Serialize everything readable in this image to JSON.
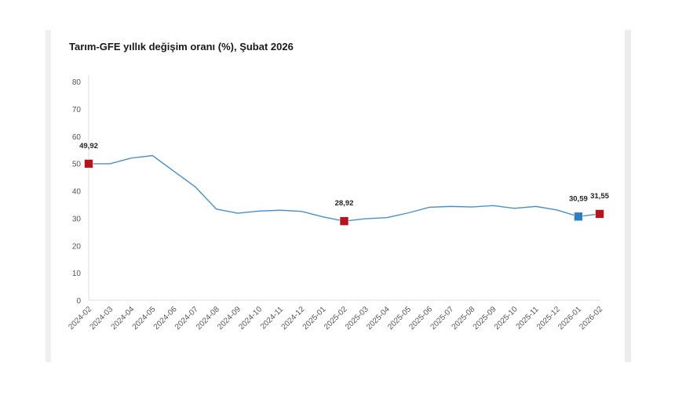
{
  "chart_data": {
    "type": "line",
    "title": "Tarım-GFE yıllık değişim oranı (%), Şubat 2026",
    "xlabel": "",
    "ylabel": "",
    "ylim": [
      0,
      80
    ],
    "yticks": [
      "0",
      "10",
      "20",
      "30",
      "40",
      "50",
      "60",
      "70",
      "80"
    ],
    "grid": false,
    "categories": [
      "2024-02",
      "2024-03",
      "2024-04",
      "2024-05",
      "2024-06",
      "2024-07",
      "2024-08",
      "2024-09",
      "2024-10",
      "2024-11",
      "2024-12",
      "2025-01",
      "2025-02",
      "2025-03",
      "2025-04",
      "2025-05",
      "2025-06",
      "2025-07",
      "2025-08",
      "2025-09",
      "2025-10",
      "2025-11",
      "2025-12",
      "2026-01",
      "2026-02"
    ],
    "series": [
      {
        "name": "Tarım-GFE",
        "color": "#4a90c8",
        "values": [
          49.92,
          49.9,
          52.0,
          52.9,
          47.2,
          41.5,
          33.3,
          31.8,
          32.6,
          32.9,
          32.5,
          30.5,
          28.92,
          29.8,
          30.2,
          31.9,
          34.0,
          34.3,
          34.1,
          34.6,
          33.6,
          34.3,
          33.0,
          30.59,
          31.55
        ]
      }
    ],
    "highlights": [
      {
        "index": 0,
        "label": "49,92",
        "color": "#b5161e"
      },
      {
        "index": 12,
        "label": "28,92",
        "color": "#b5161e"
      },
      {
        "index": 23,
        "label": "30,59",
        "color": "#2e7fc1"
      },
      {
        "index": 24,
        "label": "31,55",
        "color": "#b5161e"
      }
    ]
  }
}
